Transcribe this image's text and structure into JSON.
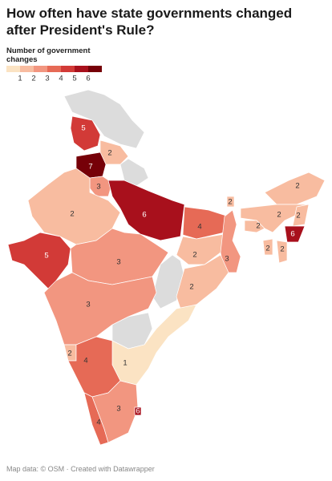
{
  "header": {
    "title": "How often have state governments changed after President's Rule?"
  },
  "legend": {
    "title": "Number of government changes",
    "ticks": [
      1,
      2,
      3,
      4,
      5,
      6
    ],
    "colors": [
      "#fbe3c3",
      "#f8bca0",
      "#f29680",
      "#e66a56",
      "#d23a37",
      "#a8101c",
      "#760008"
    ]
  },
  "map": {
    "regions": [
      5,
      2,
      7,
      3,
      6,
      2,
      5,
      3,
      4,
      2,
      3,
      2,
      3,
      1,
      2,
      4,
      4,
      3,
      6,
      2,
      2,
      2,
      2,
      2,
      6,
      2,
      2
    ]
  },
  "footer": {
    "credit": "Map data: © OSM · Created with Datawrapper"
  }
}
